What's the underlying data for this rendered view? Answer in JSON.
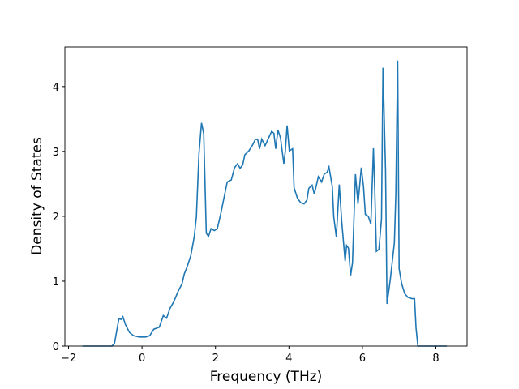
{
  "chart_data": {
    "type": "line",
    "x_label": "Frequency (THz)",
    "y_label": "Density of States",
    "xlim": [
      -2.1,
      8.85
    ],
    "ylim": [
      0,
      4.61
    ],
    "xticks": [
      {
        "value": -2,
        "label": "−2"
      },
      0,
      2,
      4,
      6,
      8
    ],
    "yticks": [
      0,
      1,
      2,
      3,
      4
    ],
    "series": [
      {
        "color": "#1f77b4",
        "x": [
          -1.62,
          -0.82,
          -0.75,
          -0.63,
          -0.56,
          -0.52,
          -0.45,
          -0.34,
          -0.23,
          -0.08,
          0.1,
          0.21,
          0.32,
          0.47,
          0.58,
          0.67,
          0.76,
          0.87,
          0.98,
          1.09,
          1.15,
          1.24,
          1.33,
          1.42,
          1.48,
          1.55,
          1.62,
          1.68,
          1.75,
          1.81,
          1.88,
          1.97,
          2.05,
          2.14,
          2.23,
          2.32,
          2.43,
          2.52,
          2.6,
          2.67,
          2.74,
          2.8,
          2.91,
          3.0,
          3.09,
          3.15,
          3.2,
          3.26,
          3.35,
          3.44,
          3.53,
          3.59,
          3.64,
          3.7,
          3.77,
          3.86,
          3.9,
          3.95,
          4.01,
          4.1,
          4.14,
          4.23,
          4.32,
          4.41,
          4.49,
          4.54,
          4.63,
          4.69,
          4.8,
          4.89,
          4.96,
          5.04,
          5.09,
          5.18,
          5.22,
          5.29,
          5.37,
          5.44,
          5.53,
          5.57,
          5.62,
          5.68,
          5.73,
          5.81,
          5.88,
          5.97,
          6.03,
          6.08,
          6.16,
          6.23,
          6.3,
          6.34,
          6.38,
          6.45,
          6.52,
          6.56,
          6.63,
          6.67,
          6.76,
          6.87,
          6.91,
          6.96,
          7.0,
          7.07,
          7.15,
          7.24,
          7.35,
          7.42,
          7.46,
          7.51,
          8.3
        ],
        "values": [
          0,
          0,
          0.04,
          0.42,
          0.41,
          0.45,
          0.33,
          0.21,
          0.16,
          0.14,
          0.14,
          0.16,
          0.26,
          0.29,
          0.47,
          0.43,
          0.58,
          0.69,
          0.84,
          0.96,
          1.11,
          1.24,
          1.4,
          1.68,
          1.99,
          2.96,
          3.44,
          3.27,
          1.74,
          1.69,
          1.81,
          1.78,
          1.81,
          2.03,
          2.28,
          2.53,
          2.56,
          2.75,
          2.81,
          2.74,
          2.79,
          2.95,
          3.01,
          3.09,
          3.19,
          3.18,
          3.04,
          3.19,
          3.09,
          3.2,
          3.31,
          3.28,
          3.04,
          3.33,
          3.21,
          2.81,
          3.0,
          3.4,
          3.01,
          3.04,
          2.44,
          2.28,
          2.21,
          2.19,
          2.25,
          2.43,
          2.48,
          2.34,
          2.61,
          2.53,
          2.65,
          2.68,
          2.76,
          2.46,
          1.99,
          1.68,
          2.49,
          1.9,
          1.31,
          1.55,
          1.51,
          1.09,
          1.28,
          2.65,
          2.19,
          2.75,
          2.46,
          2.03,
          2.0,
          1.88,
          3.05,
          2.33,
          1.46,
          1.49,
          1.96,
          4.29,
          2.71,
          0.65,
          1.03,
          1.59,
          2.34,
          4.4,
          1.19,
          0.96,
          0.81,
          0.75,
          0.73,
          0.73,
          0.28,
          0,
          0
        ]
      }
    ]
  }
}
